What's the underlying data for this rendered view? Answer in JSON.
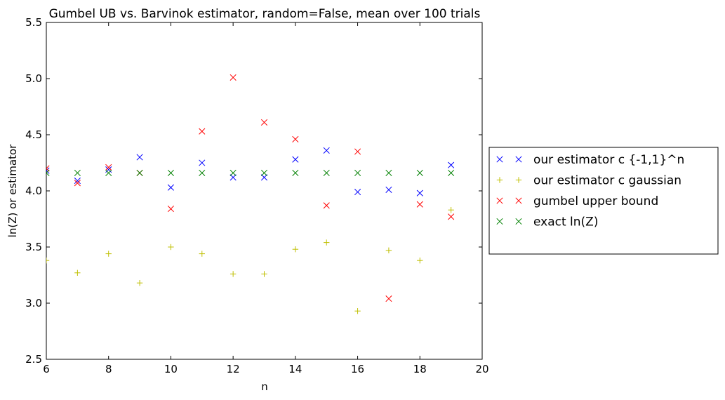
{
  "chart_data": {
    "type": "scatter",
    "title": "Gumbel UB vs. Barvinok estimator, random=False, mean over 100 trials",
    "xlabel": "n",
    "ylabel": "ln(Z) or estimator",
    "xlim": [
      6,
      20
    ],
    "ylim": [
      2.5,
      5.5
    ],
    "xticks": [
      "6",
      "8",
      "10",
      "12",
      "14",
      "16",
      "18",
      "20"
    ],
    "yticks": [
      "2.5",
      "3.0",
      "3.5",
      "4.0",
      "4.5",
      "5.0",
      "5.5"
    ],
    "grid": false,
    "legend_position": "outside-right",
    "x": [
      6,
      7,
      8,
      9,
      10,
      11,
      12,
      13,
      14,
      15,
      16,
      17,
      18,
      19
    ],
    "series": [
      {
        "name": "our estimator c {-1,1}^n",
        "marker": "x",
        "color": "#0000ff",
        "values": [
          4.18,
          4.09,
          4.19,
          4.3,
          4.03,
          4.25,
          4.12,
          4.12,
          4.28,
          4.36,
          3.99,
          4.01,
          3.98,
          4.23
        ]
      },
      {
        "name": "our estimator c gaussian",
        "marker": "+",
        "color": "#bfbf00",
        "values": [
          3.38,
          3.27,
          3.44,
          3.18,
          3.5,
          3.44,
          3.26,
          3.26,
          3.48,
          3.54,
          2.93,
          3.47,
          3.38,
          3.83
        ]
      },
      {
        "name": "gumbel upper bound",
        "marker": "x",
        "color": "#ff0000",
        "values": [
          4.2,
          4.07,
          4.21,
          4.16,
          3.84,
          4.53,
          5.01,
          4.61,
          4.46,
          3.87,
          4.35,
          3.04,
          3.88,
          3.77
        ]
      },
      {
        "name": "exact ln(Z)",
        "marker": "x",
        "color": "#008000",
        "values": [
          4.16,
          4.16,
          4.16,
          4.16,
          4.16,
          4.16,
          4.16,
          4.16,
          4.16,
          4.16,
          4.16,
          4.16,
          4.16,
          4.16
        ]
      }
    ]
  }
}
